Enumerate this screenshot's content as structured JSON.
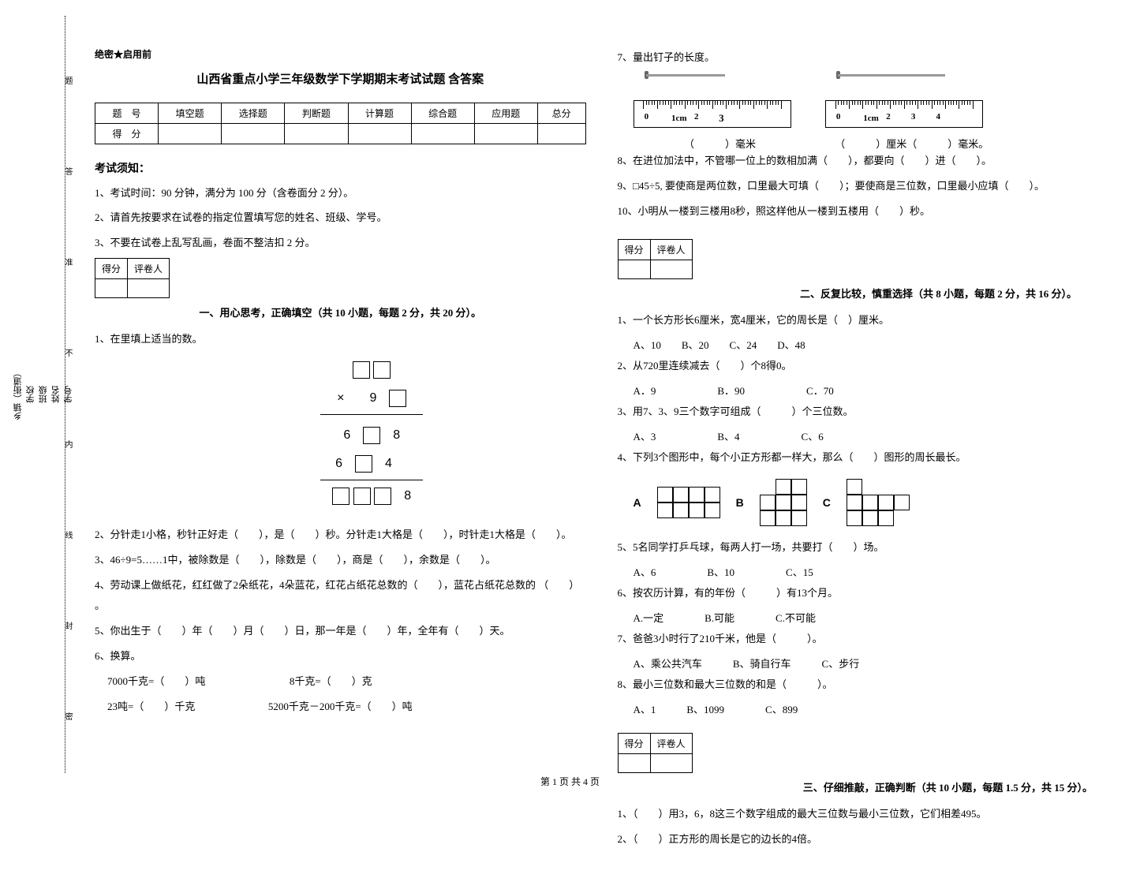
{
  "binding": {
    "labels": [
      "乡镇（街道）",
      "学校",
      "班级",
      "姓名",
      "学号"
    ],
    "dotted_labels": [
      "密",
      "封",
      "线",
      "内",
      "不",
      "准",
      "答",
      "题"
    ]
  },
  "secret": "绝密★启用前",
  "title": "山西省重点小学三年级数学下学期期末考试试题 含答案",
  "score_table": {
    "header": [
      "题　号",
      "填空题",
      "选择题",
      "判断题",
      "计算题",
      "综合题",
      "应用题",
      "总分"
    ],
    "row_label": "得　分"
  },
  "notice": {
    "title": "考试须知：",
    "items": [
      "1、考试时间：90 分钟，满分为 100 分（含卷面分 2 分）。",
      "2、请首先按要求在试卷的指定位置填写您的姓名、班级、学号。",
      "3、不要在试卷上乱写乱画，卷面不整洁扣 2 分。"
    ]
  },
  "scorebox": {
    "h1": "得分",
    "h2": "评卷人"
  },
  "section1": {
    "title": "一、用心思考，正确填空（共 10 小题，每题 2 分，共 20 分）。",
    "q1": "1、在里填上适当的数。",
    "q2": "2、分针走1小格，秒针正好走（　　），是（　　）秒。分针走1大格是（　　），时针走1大格是（　　）。",
    "q3": "3、46÷9=5……1中，被除数是（　　），除数是（　　），商是（　　），余数是（　　）。",
    "q4": "4、劳动课上做纸花，红红做了2朵纸花，4朵蓝花，红花占纸花总数的（　　），蓝花占纸花总数的 （　　） 。",
    "q5": "5、你出生于（　　）年（　　）月（　　）日，那一年是（　　）年，全年有（　　）天。",
    "q6": "6、换算。",
    "q6a": "7000千克=（　　）吨",
    "q6b": "8千克=（　　）克",
    "q6c": "23吨=（　　）千克",
    "q6d": "5200千克－200千克=（　　）吨",
    "q7": "7、量出钉子的长度。",
    "q7a": "（　　　）毫米",
    "q7b": "（　　　）厘米（　　　）毫米。",
    "q8": "8、在进位加法中，不管哪一位上的数相加满（　　），都要向（　　）进（　　）。",
    "q9": "9、□45÷5, 要使商是两位数，口里最大可填（　　）；要使商是三位数，口里最小应填（　　）。",
    "q10": "10、小明从一楼到三楼用8秒，照这样他从一楼到五楼用（　　）秒。"
  },
  "section2": {
    "title": "二、反复比较，慎重选择（共 8 小题，每题 2 分，共 16 分）。",
    "q1": "1、一个长方形长6厘米，宽4厘米，它的周长是（　）厘米。",
    "q1opts": "A、10　　B、20　　C、24　　D、48",
    "q2": "2、从720里连续减去（　　）个8得0。",
    "q2opts": "A．9　　　　　　B．90　　　　　　C．70",
    "q3": "3、用7、3、9三个数字可组成（　　　）个三位数。",
    "q3opts": "A、3　　　　　　B、4　　　　　　C、6",
    "q4": "4、下列3个图形中，每个小正方形都一样大，那么（　　）图形的周长最长。",
    "q5": "5、5名同学打乒乓球，每两人打一场，共要打（　　）场。",
    "q5opts": "A、6　　　　　B、10　　　　　C、15",
    "q6": "6、按农历计算，有的年份（　　　）有13个月。",
    "q6opts": "A.一定　　　　B.可能　　　　C.不可能",
    "q7": "7、爸爸3小时行了210千米，他是（　　　）。",
    "q7opts": "A、乘公共汽车　　　B、骑自行车　　　C、步行",
    "q8": "8、最小三位数和最大三位数的和是（　　　）。",
    "q8opts": "A、1　　　B、1099　　　　C、899"
  },
  "section3": {
    "title": "三、仔细推敲，正确判断（共 10 小题，每题 1.5 分，共 15 分）。",
    "q1": "1、（　　）用3，6，8这三个数字组成的最大三位数与最小三位数，它们相差495。",
    "q2": "2、（　　）正方形的周长是它的边长的4倍。"
  },
  "ruler": {
    "unit": "1cm"
  },
  "footer": "第 1 页 共 4 页"
}
